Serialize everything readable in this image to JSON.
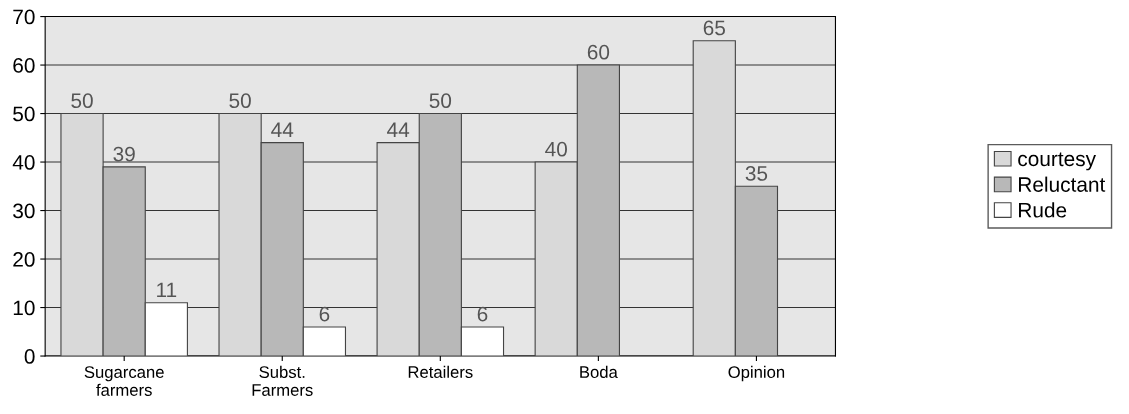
{
  "chart_data": {
    "type": "bar",
    "categories": [
      "Sugarcane\nfarmers",
      "Subst.\nFarmers",
      "Retailers",
      "Boda",
      "Opinion"
    ],
    "series": [
      {
        "name": "courtesy",
        "color": "#d9d9d9",
        "values": [
          50,
          50,
          44,
          40,
          65
        ]
      },
      {
        "name": "Reluctant",
        "color": "#b8b8b8",
        "values": [
          39,
          44,
          50,
          60,
          35
        ]
      },
      {
        "name": "Rude",
        "color": "#ffffff",
        "values": [
          11,
          6,
          6,
          null,
          null
        ]
      }
    ],
    "ylim": [
      0,
      70
    ],
    "yticks": [
      0,
      10,
      20,
      30,
      40,
      50,
      60,
      70
    ],
    "grid": "y",
    "legend": "right",
    "data_labels": true
  }
}
